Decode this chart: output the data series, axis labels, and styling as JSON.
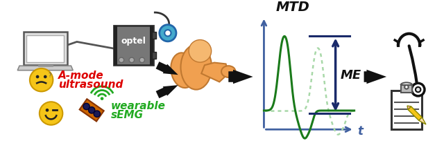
{
  "bg_color": "#ffffff",
  "arrow_color": "#111111",
  "curve_dark_green": "#1a7a1a",
  "curve_light_green": "#a8d8a8",
  "axis_color": "#4060a0",
  "annotation_line_color": "#1a2a6a",
  "mtd_label": "MTD",
  "me_label": "ME",
  "t_label": "t",
  "amode_label_line1": "A-mode",
  "amode_label_line2": "ultrasound",
  "semg_label_line1": "wearable",
  "semg_label_line2": "sEMG",
  "optel_label": "optel",
  "amode_color": "#dd0000",
  "semg_color": "#22aa22",
  "laptop_body": "#e0e0e0",
  "laptop_screen_bg": "#ffffff",
  "laptop_border": "#555555",
  "optel_body": "#888888",
  "optel_text": "#ffffff",
  "probe_color": "#44aacc",
  "emg_body": "#cc6600",
  "emg_dots": "#1a1a55",
  "smiley_fill": "#f5c518",
  "muscle_fill": "#f0a050",
  "muscle_edge": "#c07830",
  "steth_color": "#111111",
  "clipboard_color": "#111111",
  "fig_width": 6.4,
  "fig_height": 2.05,
  "dpi": 100
}
